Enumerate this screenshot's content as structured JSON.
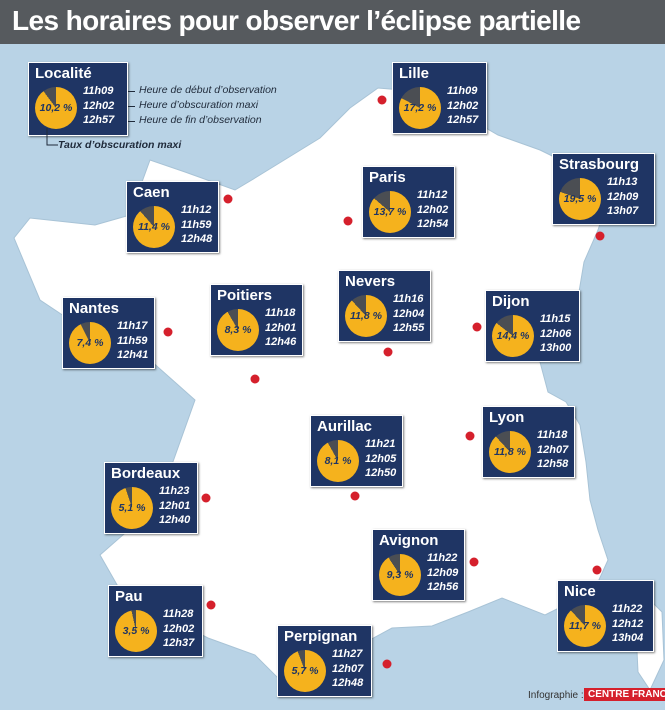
{
  "title": "Les horaires pour observer l’éclipse partielle",
  "colors": {
    "sea": "#b9d3e6",
    "land": "#ffffff",
    "box": "#1f3564",
    "sun": "#f5b21d",
    "moon": "#4b4e53",
    "dot": "#d5202c",
    "title_bar": "#565a5e"
  },
  "legend": {
    "city": "Localité",
    "percent": "10,2 %",
    "obscuration": 0.102,
    "start": "11h09",
    "max": "12h02",
    "end": "12h57",
    "start_label": "Heure de début d’observation",
    "max_label": "Heure d’obscuration maxi",
    "end_label": "Heure de fin d’observation",
    "rate_label": "Taux d’obscuration maxi"
  },
  "cities": [
    {
      "name": "Lille",
      "percent": "17,2 %",
      "obscuration": 0.172,
      "start": "11h09",
      "max": "12h02",
      "end": "12h57"
    },
    {
      "name": "Strasbourg",
      "percent": "19,5 %",
      "obscuration": 0.195,
      "start": "11h13",
      "max": "12h09",
      "end": "13h07"
    },
    {
      "name": "Paris",
      "percent": "13,7 %",
      "obscuration": 0.137,
      "start": "11h12",
      "max": "12h02",
      "end": "12h54"
    },
    {
      "name": "Caen",
      "percent": "11,4 %",
      "obscuration": 0.114,
      "start": "11h12",
      "max": "11h59",
      "end": "12h48"
    },
    {
      "name": "Nantes",
      "percent": "7,4 %",
      "obscuration": 0.074,
      "start": "11h17",
      "max": "11h59",
      "end": "12h41"
    },
    {
      "name": "Poitiers",
      "percent": "8,3 %",
      "obscuration": 0.083,
      "start": "11h18",
      "max": "12h01",
      "end": "12h46"
    },
    {
      "name": "Nevers",
      "percent": "11,8 %",
      "obscuration": 0.118,
      "start": "11h16",
      "max": "12h04",
      "end": "12h55"
    },
    {
      "name": "Dijon",
      "percent": "14,4 %",
      "obscuration": 0.144,
      "start": "11h15",
      "max": "12h06",
      "end": "13h00"
    },
    {
      "name": "Aurillac",
      "percent": "8,1 %",
      "obscuration": 0.081,
      "start": "11h21",
      "max": "12h05",
      "end": "12h50"
    },
    {
      "name": "Lyon",
      "percent": "11,8 %",
      "obscuration": 0.118,
      "start": "11h18",
      "max": "12h07",
      "end": "12h58"
    },
    {
      "name": "Bordeaux",
      "percent": "5,1 %",
      "obscuration": 0.051,
      "start": "11h23",
      "max": "12h01",
      "end": "12h40"
    },
    {
      "name": "Avignon",
      "percent": "9,3 %",
      "obscuration": 0.093,
      "start": "11h22",
      "max": "12h09",
      "end": "12h56"
    },
    {
      "name": "Pau",
      "percent": "3,5 %",
      "obscuration": 0.035,
      "start": "11h28",
      "max": "12h02",
      "end": "12h37"
    },
    {
      "name": "Nice",
      "percent": "11,7 %",
      "obscuration": 0.117,
      "start": "11h22",
      "max": "12h12",
      "end": "13h04"
    },
    {
      "name": "Perpignan",
      "percent": "5,7 %",
      "obscuration": 0.057,
      "start": "11h27",
      "max": "12h07",
      "end": "12h48"
    }
  ],
  "credit": {
    "label": "Infographie :",
    "brand": "CENTRE FRANCE"
  }
}
